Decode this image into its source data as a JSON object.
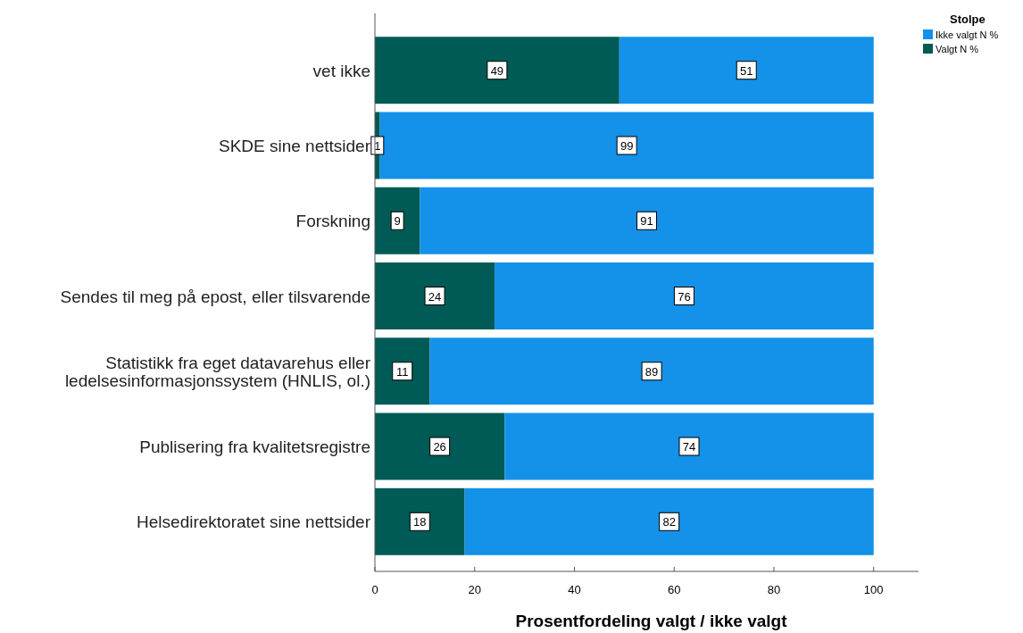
{
  "chart_data": {
    "type": "bar",
    "orientation": "horizontal",
    "stacked": true,
    "xlabel": "Prosentfordeling valgt / ikke valgt",
    "legend_title": "Stolpe",
    "legend": "top right",
    "data_labels": true,
    "grid": false,
    "categories": [
      "vet ikke",
      "SKDE sine nettsider",
      "Forskning",
      "Sendes til meg på epost, eller tilsvarende",
      "Statistikk fra eget datavarehus eller\nledelsesinformasjonssystem (HNLIS, ol.)",
      "Publisering fra kvalitetsregistre",
      "Helsedirektoratet sine nettsider"
    ],
    "series": [
      {
        "name": "Valgt N %",
        "color": "#005a55",
        "values": [
          49,
          1,
          9,
          24,
          11,
          26,
          18
        ]
      },
      {
        "name": "Ikke valgt N %",
        "color": "#1491e8",
        "values": [
          51,
          99,
          91,
          76,
          89,
          74,
          82
        ]
      }
    ],
    "xlim": [
      0,
      109
    ],
    "xticks": [
      0,
      20,
      40,
      60,
      80,
      100
    ]
  }
}
